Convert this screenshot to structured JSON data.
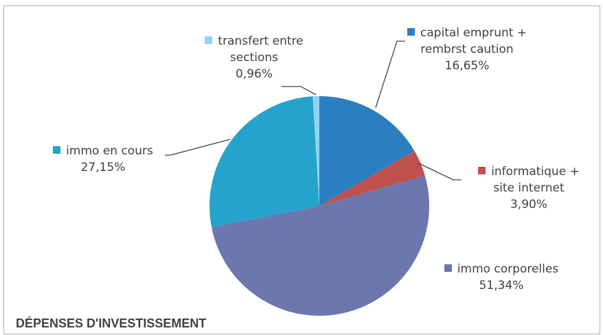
{
  "chart_data": {
    "type": "pie",
    "title": "DÉPENSES D'INVESTISSEMENT",
    "categories": [
      "capital emprunt + rembrst caution",
      "informatique + site internet",
      "immo corporelles",
      "immo en cours",
      "transfert entre sections"
    ],
    "values": [
      16.65,
      3.9,
      51.34,
      27.15,
      0.96
    ],
    "value_labels": [
      "16,65%",
      "3,90%",
      "51,34%",
      "27,15%",
      "0,96%"
    ],
    "colors": [
      "#2b7ec0",
      "#c0504d",
      "#6b77ad",
      "#26a3cc",
      "#8fd4f2"
    ]
  }
}
